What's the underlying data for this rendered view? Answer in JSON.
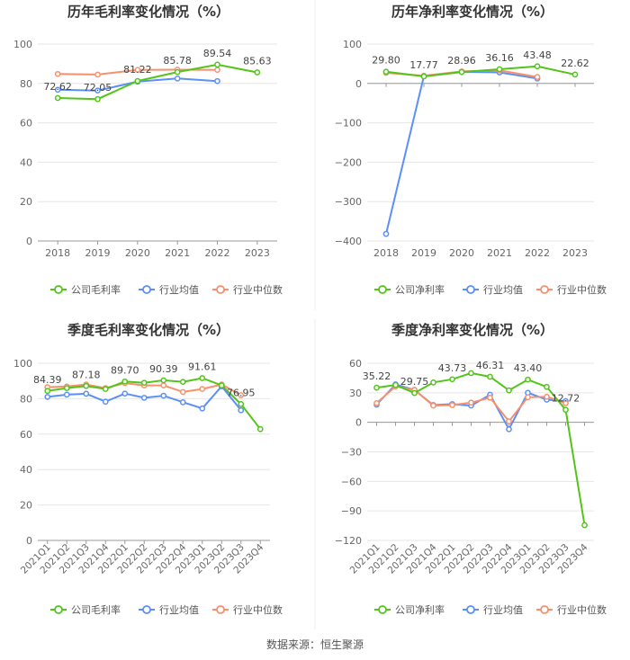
{
  "colors": {
    "company": "#52c41a",
    "industry_avg": "#5b8ff9",
    "industry_median": "#f6906d",
    "grid": "#e6e6e6",
    "axis_text": "#666666",
    "title_text": "#333333"
  },
  "legend": {
    "industry_avg": "行业均值",
    "industry_median": "行业中位数"
  },
  "source_text": "数据来源：恒生聚源",
  "chart_data": [
    {
      "type": "line",
      "title": "历年毛利率变化情况（%）",
      "categories": [
        "2018",
        "2019",
        "2020",
        "2021",
        "2022",
        "2023"
      ],
      "ylim": [
        0,
        100
      ],
      "yticks": [
        "0",
        "20",
        "40",
        "60",
        "80",
        "100"
      ],
      "series": [
        {
          "name": "公司毛利率",
          "values": [
            72.62,
            72.05,
            81.22,
            85.78,
            89.54,
            85.63
          ]
        },
        {
          "name": "行业均值",
          "values": [
            76.8,
            76.4,
            80.9,
            82.5,
            81.2,
            null
          ]
        },
        {
          "name": "行业中位数",
          "values": [
            84.8,
            84.5,
            86.9,
            87.0,
            86.9,
            null
          ]
        }
      ],
      "data_labels": [
        "72.62",
        "72.05",
        "81.22",
        "85.78",
        "89.54",
        "85.63"
      ]
    },
    {
      "type": "line",
      "title": "历年净利率变化情况（%）",
      "categories": [
        "2018",
        "2019",
        "2020",
        "2021",
        "2022",
        "2023"
      ],
      "ylim": [
        -400,
        100
      ],
      "yticks": [
        "−400",
        "−300",
        "−200",
        "−100",
        "0",
        "100"
      ],
      "series": [
        {
          "name": "公司净利率",
          "values": [
            29.8,
            17.77,
            28.96,
            36.16,
            43.48,
            22.62
          ]
        },
        {
          "name": "行业均值",
          "values": [
            -382,
            18.5,
            29.5,
            28.0,
            12.5,
            null
          ]
        },
        {
          "name": "行业中位数",
          "values": [
            27.0,
            19.5,
            30.5,
            33.0,
            16.5,
            null
          ]
        }
      ],
      "data_labels": [
        "29.80",
        "17.77",
        "28.96",
        "36.16",
        "43.48",
        "22.62"
      ]
    },
    {
      "type": "line",
      "title": "季度毛利率变化情况（%）",
      "categories": [
        "2021Q1",
        "2021Q2",
        "2021Q3",
        "2021Q4",
        "2022Q1",
        "2022Q2",
        "2022Q3",
        "2022Q4",
        "2023Q1",
        "2023Q2",
        "2023Q3",
        "2023Q4"
      ],
      "ylim": [
        0,
        100
      ],
      "yticks": [
        "0",
        "20",
        "40",
        "60",
        "80",
        "100"
      ],
      "series": [
        {
          "name": "公司毛利率",
          "values": [
            84.39,
            86.0,
            87.18,
            85.5,
            89.7,
            89.0,
            90.39,
            89.5,
            91.61,
            87.5,
            76.95,
            62.8
          ]
        },
        {
          "name": "行业均值",
          "values": [
            81.0,
            82.3,
            82.8,
            78.3,
            82.9,
            80.5,
            81.7,
            78.0,
            74.5,
            87.0,
            73.5,
            null
          ]
        },
        {
          "name": "行业中位数",
          "values": [
            86.5,
            86.9,
            88.0,
            86.0,
            88.8,
            87.5,
            87.5,
            83.8,
            85.5,
            88.0,
            82.0,
            null
          ]
        }
      ],
      "data_labels": [
        "84.39",
        "",
        "87.18",
        "",
        "89.70",
        "",
        "90.39",
        "",
        "91.61",
        "",
        "76.95",
        ""
      ]
    },
    {
      "type": "line",
      "title": "季度净利率变化情况（%）",
      "categories": [
        "2021Q1",
        "2021Q2",
        "2021Q3",
        "2021Q4",
        "2022Q1",
        "2022Q2",
        "2022Q3",
        "2022Q4",
        "2023Q1",
        "2023Q2",
        "2023Q3",
        "2023Q4"
      ],
      "ylim": [
        -120,
        60
      ],
      "yticks": [
        "−120",
        "−90",
        "−60",
        "−30",
        "0",
        "30",
        "60"
      ],
      "series": [
        {
          "name": "公司净利率",
          "values": [
            35.22,
            38.0,
            29.75,
            40.5,
            43.73,
            50.0,
            46.31,
            32.5,
            43.4,
            36.0,
            12.72,
            -104.5
          ]
        },
        {
          "name": "行业均值",
          "values": [
            18.0,
            38.5,
            33.0,
            17.5,
            18.5,
            17.0,
            28.0,
            -7.0,
            30.0,
            23.0,
            21.5,
            null
          ]
        },
        {
          "name": "行业中位数",
          "values": [
            19.5,
            36.5,
            33.0,
            17.0,
            17.5,
            20.0,
            25.0,
            1.0,
            25.5,
            26.0,
            19.5,
            null
          ]
        }
      ],
      "data_labels": [
        "35.22",
        "",
        "29.75",
        "",
        "43.73",
        "",
        "46.31",
        "",
        "43.40",
        "",
        "12.72",
        ""
      ]
    }
  ]
}
